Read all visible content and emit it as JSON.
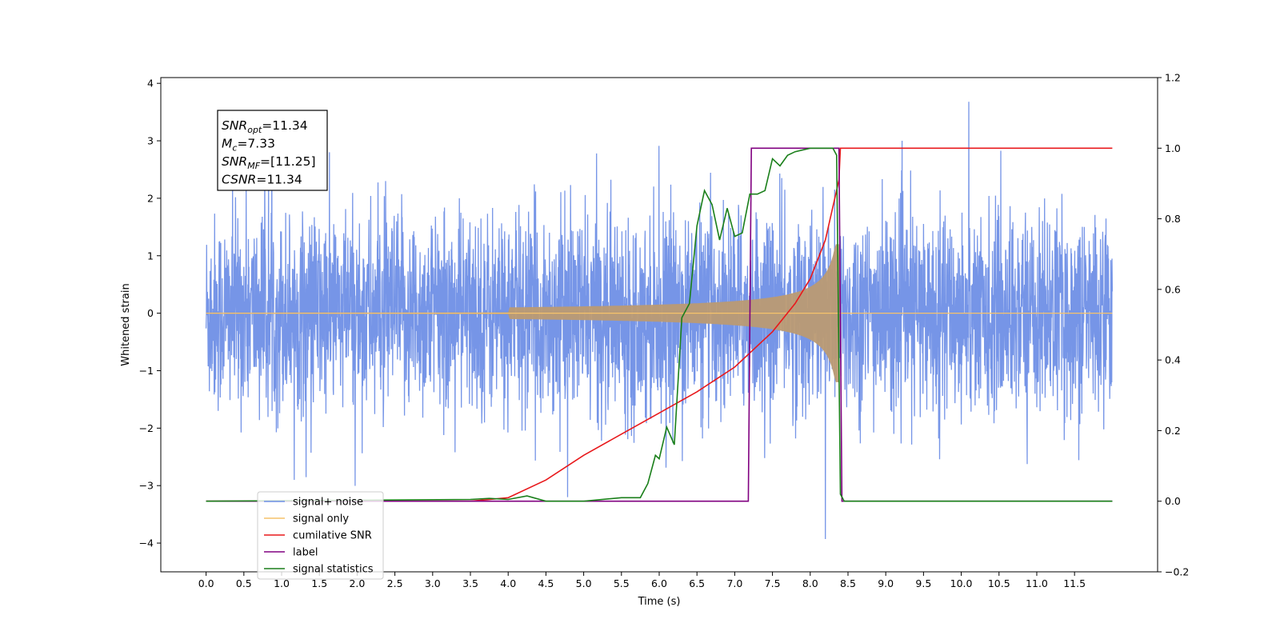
{
  "chart_data": {
    "type": "line",
    "xlabel": "Time (s)",
    "ylabel": "Whitened strain",
    "xlim": [
      -0.6,
      12.6
    ],
    "ylim_left": [
      -4.5,
      4.1
    ],
    "ylim_right": [
      -0.2,
      1.2
    ],
    "x_ticks": [
      "0.0",
      "0.5",
      "1.0",
      "1.5",
      "2.0",
      "2.5",
      "3.0",
      "3.5",
      "4.0",
      "4.5",
      "5.0",
      "5.5",
      "6.0",
      "6.5",
      "7.0",
      "7.5",
      "8.0",
      "8.5",
      "9.0",
      "9.5",
      "10.0",
      "10.5",
      "11.0",
      "11.5"
    ],
    "y_ticks_left": [
      "4",
      "3",
      "2",
      "1",
      "0",
      "−1",
      "−2",
      "−3",
      "−4"
    ],
    "y_ticks_right": [
      "1.2",
      "1.0",
      "0.8",
      "0.6",
      "0.4",
      "0.2",
      "0.0",
      "−0.2"
    ],
    "grid": false,
    "legend_position": "lower-left",
    "annotation": {
      "lines": [
        {
          "sym": "SNR",
          "sub": "opt",
          "rest": "=11.34"
        },
        {
          "sym": "M",
          "sub": "c",
          "rest": "=7.33"
        },
        {
          "sym": "SNR",
          "sub": "MF",
          "rest": "=[11.25]"
        },
        {
          "sym": "CSNR",
          "sub": "",
          "rest": "=11.34"
        }
      ]
    },
    "series": [
      {
        "name": "signal+ noise",
        "color": "#6f8fe6",
        "axis": "left",
        "description_values": {
          "t_start": 0.0,
          "t_end": 12.0,
          "noise_std": 0.9,
          "max_spike_up": 3.68,
          "max_spike_t": 10.1,
          "min_spike_down": -3.93,
          "min_spike_t": 8.2
        }
      },
      {
        "name": "signal only",
        "color": "#f6c26a",
        "axis": "left",
        "chirp": {
          "t_merge": 8.38,
          "peak_amplitude": 1.2,
          "t_visible_start": 4.0
        }
      },
      {
        "name": "cumilative SNR",
        "color": "#e8191c",
        "axis": "right",
        "x": [
          0.0,
          3.5,
          4.0,
          4.5,
          5.0,
          5.5,
          6.0,
          6.5,
          7.0,
          7.5,
          7.8,
          8.0,
          8.2,
          8.38,
          8.4,
          12.0
        ],
        "y": [
          0.0,
          0.0,
          0.01,
          0.06,
          0.13,
          0.19,
          0.25,
          0.31,
          0.38,
          0.48,
          0.56,
          0.63,
          0.74,
          0.91,
          1.0,
          1.0
        ]
      },
      {
        "name": "label",
        "color": "#800080",
        "axis": "right",
        "x": [
          0.0,
          7.18,
          7.22,
          8.38,
          8.42,
          12.0
        ],
        "y": [
          0.0,
          0.0,
          1.0,
          1.0,
          0.0,
          0.0
        ]
      },
      {
        "name": "signal statistics",
        "color": "#1a7f1a",
        "axis": "right",
        "x": [
          0.0,
          3.5,
          3.75,
          4.0,
          4.25,
          4.5,
          5.0,
          5.5,
          5.75,
          5.85,
          5.95,
          6.0,
          6.1,
          6.2,
          6.3,
          6.4,
          6.5,
          6.6,
          6.7,
          6.8,
          6.9,
          7.0,
          7.1,
          7.2,
          7.3,
          7.4,
          7.5,
          7.6,
          7.7,
          7.8,
          8.0,
          8.3,
          8.35,
          8.4,
          8.45,
          12.0
        ],
        "y": [
          0.0,
          0.005,
          0.008,
          0.005,
          0.015,
          0.0,
          0.0,
          0.01,
          0.01,
          0.05,
          0.13,
          0.12,
          0.21,
          0.16,
          0.52,
          0.56,
          0.78,
          0.88,
          0.84,
          0.74,
          0.83,
          0.75,
          0.76,
          0.87,
          0.87,
          0.88,
          0.97,
          0.95,
          0.98,
          0.99,
          1.0,
          1.0,
          0.98,
          0.02,
          0.0,
          0.0
        ]
      }
    ],
    "legend": [
      {
        "label": "signal+ noise",
        "color": "#6f8fe6"
      },
      {
        "label": "signal only",
        "color": "#f6c26a"
      },
      {
        "label": "cumilative SNR",
        "color": "#e8191c"
      },
      {
        "label": "label",
        "color": "#800080"
      },
      {
        "label": "signal statistics",
        "color": "#1a7f1a"
      }
    ]
  }
}
